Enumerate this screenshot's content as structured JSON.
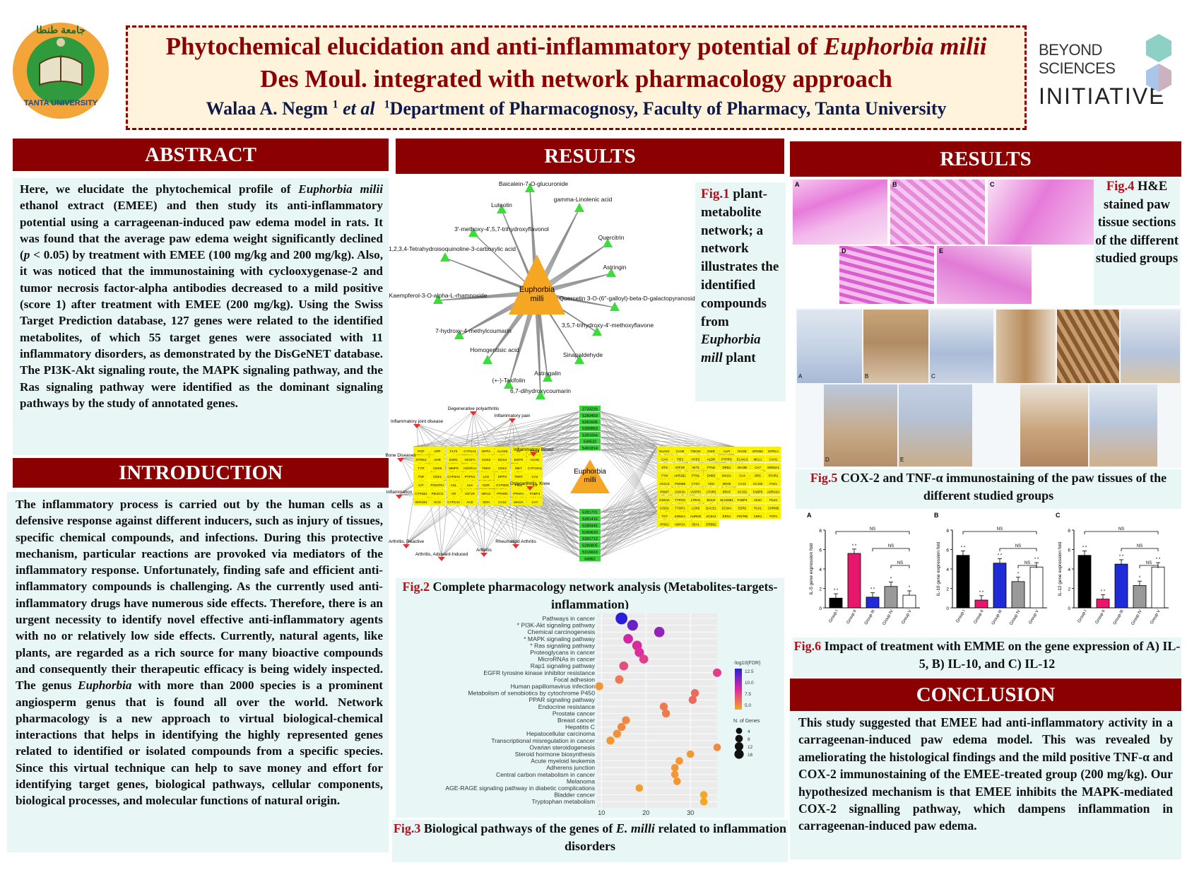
{
  "header": {
    "title_line1_a": "Phytochemical elucidation and anti-inflammatory potential of ",
    "title_line1_b": "Euphorbia milii",
    "title_line2": "Des Moul. integrated with network pharmacology approach",
    "author": "Walaa A. Negm",
    "author_sup": "1",
    "et_al": "et al",
    "affil_sup": "1",
    "affiliation": "Department of Pharmacognosy, Faculty of Pharmacy, Tanta University",
    "uni_logo_top": "جامعة طنطا",
    "uni_logo_bottom": "TANTA UNIVERSITY",
    "bsi_line1": "BEYOND SCIENCES",
    "bsi_line2": "INITIATIVE"
  },
  "abstract": {
    "heading": "ABSTRACT",
    "p1": "Here, we elucidate the phytochemical profile of ",
    "p1_italic": "Euphorbia milii",
    "p2": " ethanol extract (EMEE) and then study its anti-inflammatory potential using a carrageenan-induced paw edema model in rats. It was found that the average paw edema weight significantly declined (",
    "p2_italic": "p",
    "p3": " < 0.05) by treatment with EMEE (100 mg/kg and 200 mg/kg). Also, it was noticed that the immunostaining with cyclooxygenase-2 and tumor necrosis factor-alpha antibodies decreased to a mild positive (score 1) after treatment with EMEE (200 mg/kg). Using the Swiss Target Prediction database, 127 genes were related to the identified metabolites, of which 55 target genes were associated with 11 inflammatory disorders, as demonstrated by the DisGeNET database. The PI3K-Akt signaling route, the MAPK signaling pathway, and the Ras signaling pathway were identified as the dominant signaling pathways by the study of annotated genes."
  },
  "introduction": {
    "heading": "INTRODUCTION",
    "p1": "The inflammatory process is carried out by the human cells as a defensive response against different inducers, such as injury of tissues, specific chemical compounds, and infections. During this protective mechanism, particular reactions are provoked via mediators of the inflammatory response. Unfortunately, finding safe and efficient anti-inflammatory compounds is challenging. As the currently used anti-inflammatory drugs have numerous side effects. Therefore, there is an urgent necessity to identify novel effective anti-inflammatory agents with no or relatively low side effects. Currently, natural agents, like plants, are regarded as a rich source for many bioactive compounds and consequently their therapeutic efficacy is being widely inspected. The genus ",
    "p1_italic": "Euphorbia",
    "p2": " with more than 2000 species is a prominent angiosperm genus that is found all over the world. Network pharmacology is a new approach to virtual biological-chemical interactions that helps in identifying the highly represented genes related to identified or isolated compounds from a specific species. Since this virtual technique can help to save money and effort for identifying target genes, biological pathways, cellular components, biological processes, and molecular functions of natural origin."
  },
  "results_mid": {
    "heading": "RESULTS",
    "fig1_label": "Fig.1",
    "fig1_text_a": " plant-metabolite network; a network illustrates the identified compounds from ",
    "fig1_italic": "Euphorbia mill",
    "fig1_text_b": " plant",
    "fig1_center": "Euphorbia milli",
    "fig1_nodes": [
      "Baicalein-7-O-glucuronide",
      "Luteolin",
      "gamma-Linolenic acid",
      "3'-methoxy-4',5,7-trihydroxyflavonol",
      "Quercitrin",
      "1,2,3,4-Tetrahydroisoquinoline-3-carboxylic acid",
      "Astringin",
      "Kaempferol-3-O-alpha-L-rhamnoside",
      "Quercetin 3-O-(6''-galloyl)-beta-D-galactopyranoside",
      "7-hydroxy-4-methylcoumarin",
      "3,5,7-trihydroxy-4'-methoxyflavone",
      "Homogentisic acid",
      "Sinapaldehyde",
      "(+-)-Taxifolin",
      "Astragalin",
      "6,7-dihydroxycoumarin"
    ],
    "fig2_label": "Fig.2",
    "fig2_text": " Complete pharmacology network analysis (Metabolites-targets-inflammation)",
    "fig2_center": "Euphorbia milli",
    "fig2_diseases": [
      "Degenerative polyarthritis",
      "Inflammatory pain",
      "Inflammatory joint disease",
      "Bone Diseases",
      "Inflammatory Bowel",
      "Inflammation",
      "Osteoarthritis, Knee",
      "Arthritis, Reactive",
      "Arthritis, Adjuvant-Induced",
      "Arthritis",
      "Rheumatoid Arthritis"
    ],
    "fig2_ids_top": [
      "2733226",
      "5280459",
      "5281606",
      "5280863",
      "5281654",
      "539532",
      "5491814"
    ],
    "fig2_ids_bottom": [
      "5281701",
      "5281416",
      "5280445",
      "5280633",
      "5281712",
      "5280805",
      "5316663",
      "64962"
    ],
    "fig2_genes_left": [
      "PGF",
      "APP",
      "FLT3",
      "CYP1A1",
      "DPP4",
      "ALOX5",
      "F2",
      "CDK5",
      "NTRK2",
      "AHR",
      "ESR1",
      "VEGFA",
      "CDK6",
      "NOX4",
      "EGFR",
      "ACHE",
      "TYR",
      "CDK8",
      "MMP9",
      "ADORA1",
      "TNKS",
      "CDK2",
      "MET",
      "CYP19A1",
      "TNF",
      "CDK1",
      "CYP3A4",
      "PTPN1",
      "LCK",
      "DPP4",
      "TERT",
      "CA2",
      "KIT",
      "PDGFRA",
      "AXL",
      "ALK",
      "KDR",
      "CYP2D6",
      "PIM1",
      "IL2",
      "CYP1B1",
      "PIK3CG",
      "AR",
      "IGF1R",
      "NR1I2",
      "PPARD",
      "PPARA",
      "FABP4",
      "AKR1B1",
      "SCD",
      "CYP1A2",
      "ACE",
      "XDH",
      "CA12",
      "MAOA",
      "CA7"
    ],
    "fig2_genes_right": [
      "NUAK1",
      "CAH9",
      "TNKS2",
      "INSR",
      "ALPI",
      "RAGE",
      "EPHB4",
      "MTR1A",
      "CA4",
      "TIE2",
      "HYES",
      "ALDR",
      "PTPRS",
      "ELAVL3",
      "MCL1",
      "CAH1",
      "STS",
      "IGF1R",
      "AKT1",
      "PTN2",
      "DRD1",
      "MAOB",
      "CA7",
      "SRD5A1",
      "FYN",
      "AKR1B1",
      "PTN1",
      "DHB3",
      "MAOA",
      "CA4",
      "SRC",
      "FFAR1",
      "AK1C3",
      "PGMB5",
      "CTSV",
      "XDH",
      "MK08",
      "CA12",
      "SC193",
      "FAK1",
      "PNMT",
      "GSK3A",
      "VGFR3",
      "LTOR2",
      "BRAF",
      "SC151",
      "FABP5",
      "ADRA2A",
      "GSK3A",
      "TYRO3",
      "LTRH1",
      "BGLR",
      "SLC02B1",
      "FABP4",
      "AK3A",
      "PLK4",
      "CISD1",
      "TYDP1",
      "LOX5",
      "BACE1",
      "SC34A",
      "ESR2",
      "PLK1",
      "CHRM5",
      "TGT",
      "KDM1A",
      "AURKB",
      "SC5A2",
      "ERN1",
      "PGFRB",
      "CBR1",
      "TOP1",
      "IPSK2",
      "AMY2A",
      "S5A1",
      "ERBB2"
    ],
    "fig3_label": "Fig.3",
    "fig3_text_a": " Biological pathways of the genes of ",
    "fig3_italic": "E. milli",
    "fig3_text_b": " related to inflammation disorders",
    "fig3_legend_title1": "-log10(FDR)",
    "fig3_legend_ticks1": [
      "12.5",
      "10.0",
      "7.5",
      "5.0"
    ],
    "fig3_legend_title2": "N. of Genes",
    "fig3_legend_ticks2": [
      "4",
      "8",
      "12",
      "16"
    ],
    "fig3_xticks": [
      "10",
      "20",
      "30"
    ]
  },
  "chart_data": {
    "type": "scatter",
    "title": "",
    "xlabel": "",
    "ylabel": "",
    "xlim": [
      9,
      36
    ],
    "x_ticks": [
      10,
      20,
      30
    ],
    "color_scale": "-log10(FDR)",
    "size_scale": "N. of Genes",
    "categories": [
      "Pathways in cancer",
      "PI3K-Akt signaling pathway",
      "Chemical carcinogenesis",
      "MAPK signaling pathway",
      "Ras signaling pathway",
      "Proteoglycans in cancer",
      "MicroRNAs in cancer",
      "Rap1 signaling pathway",
      "EGFR tyrosine kinase inhibitor resistance",
      "Focal adhesion",
      "Human papillomavirus infection",
      "Metabolism of xenobiotics by cytochrome P450",
      "PPAR signaling pathway",
      "Endocrine resistance",
      "Prostate cancer",
      "Breast cancer",
      "Hepatitis C",
      "Hepatocellular carcinoma",
      "Transcriptional misregulation in cancer",
      "Ovarian steroidogenesis",
      "Steroid hormone biosynthesis",
      "Acute myeloid leukemia",
      "Adherens junction",
      "Central carbon metabolism in cancer",
      "Melanoma",
      "AGE-RAGE signaling pathway in diabetic complications",
      "Bladder cancer",
      "Tryptophan metabolism"
    ],
    "starred": [
      "PI3K-Akt signaling pathway",
      "MAPK signaling pathway",
      "Ras signaling pathway"
    ],
    "x": [
      14.5,
      17,
      23,
      16,
      18,
      18.5,
      19.5,
      15,
      36,
      14,
      9.5,
      31,
      30.5,
      24,
      24.5,
      15.5,
      14.5,
      13.5,
      12,
      36,
      30,
      27.5,
      26.5,
      26.5,
      27,
      18.5,
      33,
      33
    ],
    "genes": [
      16,
      12,
      11,
      9,
      9,
      8,
      7,
      7,
      6,
      6,
      5,
      5,
      5,
      5,
      5,
      5,
      5,
      5,
      5,
      4,
      4,
      4,
      4,
      4,
      4,
      4,
      4,
      4
    ],
    "neglog10_fdr": [
      13,
      11.5,
      10.5,
      9,
      8.8,
      8.5,
      8,
      7.5,
      8,
      6,
      5,
      6.5,
      6.5,
      6,
      6,
      5.5,
      5.5,
      5.2,
      5,
      5.5,
      5,
      5,
      5,
      5,
      5,
      4.8,
      4.5,
      4.5
    ]
  },
  "results_right": {
    "heading": "RESULTS",
    "fig4_label": "Fig.4",
    "fig4_text": " H&E stained paw tissue sections of the different studied groups",
    "he_letters": [
      "A",
      "B",
      "C",
      "D",
      "E"
    ],
    "fig5_label": "Fig.5",
    "fig5_text": " COX-2 and TNF-α immunostaining of the paw tissues of the different studied groups",
    "ihc_letters": [
      "A",
      "B",
      "C",
      "D",
      "E"
    ],
    "fig6_label": "Fig.6",
    "fig6_text": " Impact of treatment with EMME on the gene expression of A) IL-5, B) IL-10, and C) IL-12",
    "bar_panels": [
      {
        "letter": "A",
        "ylabel": "IL-5 gene expression fold",
        "values": [
          1.0,
          5.6,
          1.1,
          2.2,
          1.3
        ],
        "annot": [
          "* *",
          "* *",
          "* *",
          "*",
          "*"
        ]
      },
      {
        "letter": "B",
        "ylabel": "IL-10 gene expression fold",
        "values": [
          5.4,
          0.8,
          4.6,
          2.7,
          4.2
        ],
        "annot": [
          "* *",
          "* *",
          "* *",
          "*",
          "* *"
        ]
      },
      {
        "letter": "C",
        "ylabel": "IL-12 gene expression fold",
        "values": [
          5.4,
          0.9,
          4.5,
          2.3,
          4.2
        ],
        "annot": [
          "* *",
          "* *",
          "* *",
          "*",
          "* *"
        ]
      }
    ],
    "groups": [
      "Group I",
      "Group II",
      "Group III",
      "Group IV",
      "Group V"
    ],
    "group_colors": [
      "#000000",
      "#e8176e",
      "#1e2bd6",
      "#9a9a9a",
      "#ffffff"
    ],
    "ns": "NS",
    "yticks": [
      "0",
      "2",
      "4",
      "6",
      "8"
    ]
  },
  "conclusion": {
    "heading": "CONCLUSION",
    "text": "This study suggested that EMEE had anti-inflammatory activity in a carrageenan-induced paw edema model. This was revealed by ameliorating the histological findings and the mild positive TNF-α and COX-2 immunostaining of the EMEE-treated group (200 mg/kg). Our hypothesized mechanism is that EMEE inhibits the MAPK-mediated COX-2 signalling pathway, which dampens inflammation in carrageenan-induced paw edema."
  }
}
